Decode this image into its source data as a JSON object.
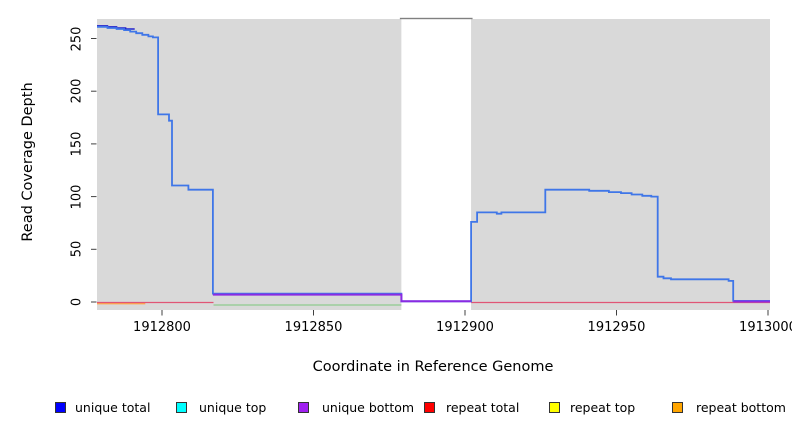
{
  "chart_data": {
    "type": "line",
    "title": "",
    "xlabel": "Coordinate in Reference Genome",
    "ylabel": "Read Coverage Depth",
    "x_ticks": [
      1912800,
      1912850,
      1912900,
      1912950,
      1913000
    ],
    "x_tick_labels": [
      "1912800",
      "1912850",
      "1912900",
      "1912950",
      "1913000"
    ],
    "y_ticks": [
      0,
      50,
      100,
      150,
      200,
      250
    ],
    "y_tick_labels": [
      "0",
      "50",
      "100",
      "150",
      "200",
      "250"
    ],
    "xlim": [
      1912778.5,
      1913000.7
    ],
    "ylim": [
      -8,
      268
    ],
    "grid": false,
    "plot_background": "#d9d9d9",
    "gap_region": {
      "from": 1912879,
      "to": 1912902,
      "color": "#ffffff",
      "top_border_color": "#808080"
    },
    "series": [
      {
        "id": "top-overlap-green",
        "name": "unique top / repeat top overlap",
        "color": "#8FCA8F",
        "width": 1.3,
        "dy": 3,
        "paths": [
          {
            "steps": [
              [
                1912817,
                0
              ]
            ],
            "end": 1912879
          }
        ]
      },
      {
        "id": "repeat-bottom",
        "name": "repeat bottom",
        "color": "#FFA64D",
        "width": 1.8,
        "dy": 1.5,
        "paths": [
          {
            "steps": [
              [
                1912778.5,
                0
              ]
            ],
            "end": 1912794.5
          }
        ]
      },
      {
        "id": "repeat-total",
        "name": "repeat total",
        "color": "#E05575",
        "width": 1.2,
        "dy": 0.5,
        "paths": [
          {
            "steps": [
              [
                1912778.5,
                0
              ]
            ],
            "end": 1912817
          },
          {
            "steps": [
              [
                1912902,
                0
              ]
            ],
            "end": 1913000.7
          }
        ]
      },
      {
        "id": "unique-total-dark",
        "name": "unique total (dark overlay)",
        "color": "#2222CC",
        "width": 1.5,
        "dy": 0,
        "paths": [
          {
            "steps": [
              [
                1912778.5,
                262
              ],
              [
                1912782,
                261
              ],
              [
                1912785,
                260
              ],
              [
                1912788,
                259
              ]
            ],
            "end": 1912791
          }
        ]
      },
      {
        "id": "unique-total",
        "name": "unique total",
        "color": "#3F76E8",
        "width": 1.8,
        "dy": 0,
        "paths": [
          {
            "steps": [
              [
                1912778.5,
                261
              ],
              [
                1912782,
                260
              ],
              [
                1912785,
                259
              ],
              [
                1912787.5,
                258
              ],
              [
                1912789.5,
                256.5
              ],
              [
                1912791.5,
                255
              ],
              [
                1912793.5,
                253.5
              ],
              [
                1912795.5,
                252
              ],
              [
                1912797,
                251
              ],
              [
                1912798.7,
                178
              ],
              [
                1912802.3,
                172
              ],
              [
                1912803.3,
                110.5
              ],
              [
                1912808.7,
                106.5
              ],
              [
                1912816.8,
                8
              ],
              [
                1912879,
                0.7
              ],
              [
                1912902,
                76
              ],
              [
                1912904,
                85
              ],
              [
                1912910.5,
                83.8
              ],
              [
                1912912,
                85
              ],
              [
                1912926.5,
                106.5
              ],
              [
                1912941,
                105.5
              ],
              [
                1912947.5,
                104.3
              ],
              [
                1912951.5,
                103.3
              ],
              [
                1912955,
                102
              ],
              [
                1912958.5,
                100.8
              ],
              [
                1912961.5,
                100
              ],
              [
                1912963.6,
                24
              ],
              [
                1912965.5,
                22.5
              ],
              [
                1912968,
                21.5
              ],
              [
                1912987,
                20
              ],
              [
                1912988.5,
                1
              ]
            ],
            "end": 1913000.7
          }
        ]
      },
      {
        "id": "unique-bottom",
        "name": "unique bottom",
        "color": "#8A2BE2",
        "width": 2,
        "dy": 0,
        "paths": [
          {
            "steps": [
              [
                1912816.8,
                7
              ],
              [
                1912879,
                0.7
              ]
            ],
            "end": 1912902
          },
          {
            "steps": [
              [
                1912988.5,
                0.5
              ]
            ],
            "end": 1913000.7
          }
        ]
      }
    ],
    "legend": [
      {
        "label": "unique total",
        "color": "#0000FF"
      },
      {
        "label": "unique top",
        "color": "#00FFFF"
      },
      {
        "label": "unique bottom",
        "color": "#A020F0"
      },
      {
        "label": "repeat total",
        "color": "#FF0000"
      },
      {
        "label": "repeat top",
        "color": "#FFFF00"
      },
      {
        "label": "repeat bottom",
        "color": "#FFA500"
      }
    ],
    "legend_position": "bottom"
  }
}
